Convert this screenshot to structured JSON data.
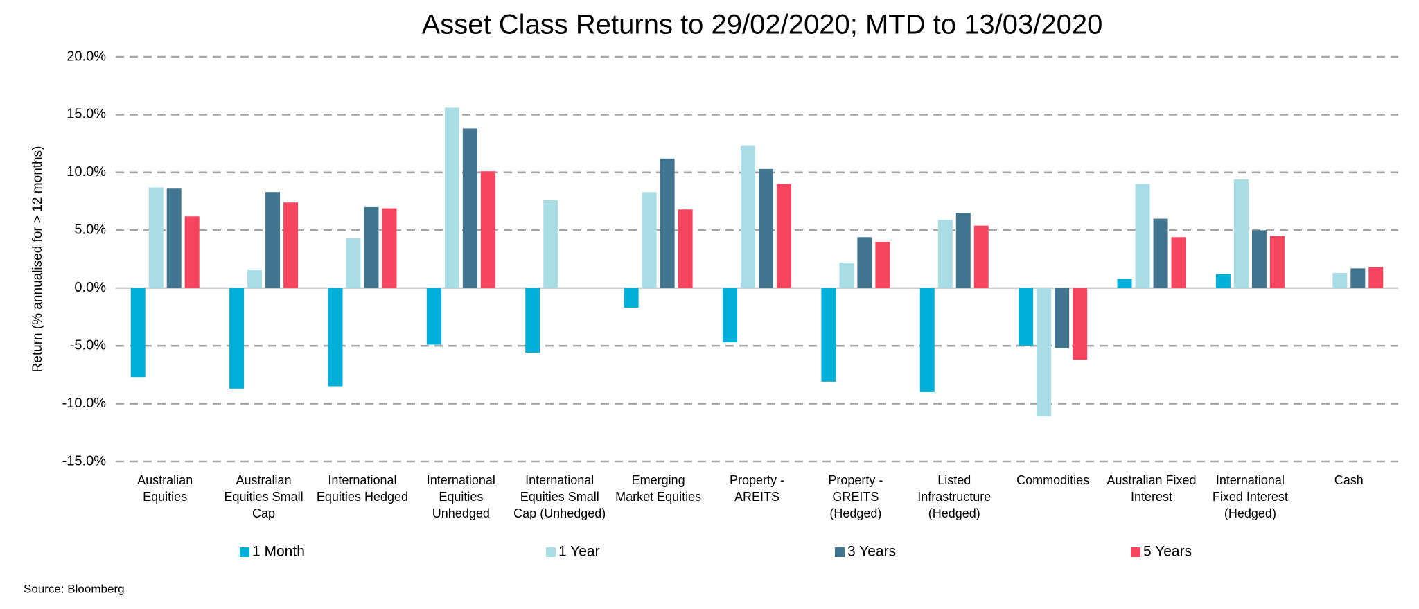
{
  "chart_data": {
    "type": "bar",
    "title": "Asset Class Returns to 29/02/2020; MTD to 13/03/2020",
    "y_label": "Return (% annualised for > 12 months)",
    "source": "Source: Bloomberg",
    "categories": [
      "Australian Equities",
      "Australian Equities Small Cap",
      "International Equities Hedged",
      "International Equities Unhedged",
      "International Equities Small Cap (Unhedged)",
      "Emerging Market Equities",
      "Property - AREITS",
      "Property - GREITS (Hedged)",
      "Listed Infrastructure (Hedged)",
      "Commodities",
      "Australian Fixed Interest",
      "International Fixed Interest (Hedged)",
      "Cash"
    ],
    "series": [
      {
        "name": "1 Month",
        "color": "#00b0d8",
        "values": [
          -7.7,
          -8.7,
          -8.5,
          -4.9,
          -5.6,
          -1.7,
          -4.7,
          -8.1,
          -9.0,
          -5.0,
          0.8,
          1.2,
          null
        ]
      },
      {
        "name": "1 Year",
        "color": "#a8dde6",
        "values": [
          8.7,
          1.6,
          4.3,
          15.6,
          7.6,
          8.3,
          12.3,
          2.2,
          5.9,
          -11.1,
          9.0,
          9.4,
          1.3
        ]
      },
      {
        "name": "3 Years",
        "color": "#41748f",
        "values": [
          8.6,
          8.3,
          7.0,
          13.8,
          null,
          11.2,
          10.3,
          4.4,
          6.5,
          -5.2,
          6.0,
          5.0,
          1.7
        ]
      },
      {
        "name": "5 Years",
        "color": "#f7455f",
        "values": [
          6.2,
          7.4,
          6.9,
          10.1,
          null,
          6.8,
          9.0,
          4.0,
          5.4,
          -6.2,
          4.4,
          4.5,
          1.8
        ]
      }
    ],
    "ylim": [
      -15,
      20
    ],
    "yticks": [
      {
        "value": -15,
        "label": "-15.0%"
      },
      {
        "value": -10,
        "label": "-10.0%"
      },
      {
        "value": -5,
        "label": "-5.0%"
      },
      {
        "value": 0,
        "label": "0.0%"
      },
      {
        "value": 5,
        "label": "5.0%"
      },
      {
        "value": 10,
        "label": "10.0%"
      },
      {
        "value": 15,
        "label": "15.0%"
      },
      {
        "value": 20,
        "label": "20.0%"
      }
    ],
    "grid": true,
    "legend": "bottom"
  }
}
